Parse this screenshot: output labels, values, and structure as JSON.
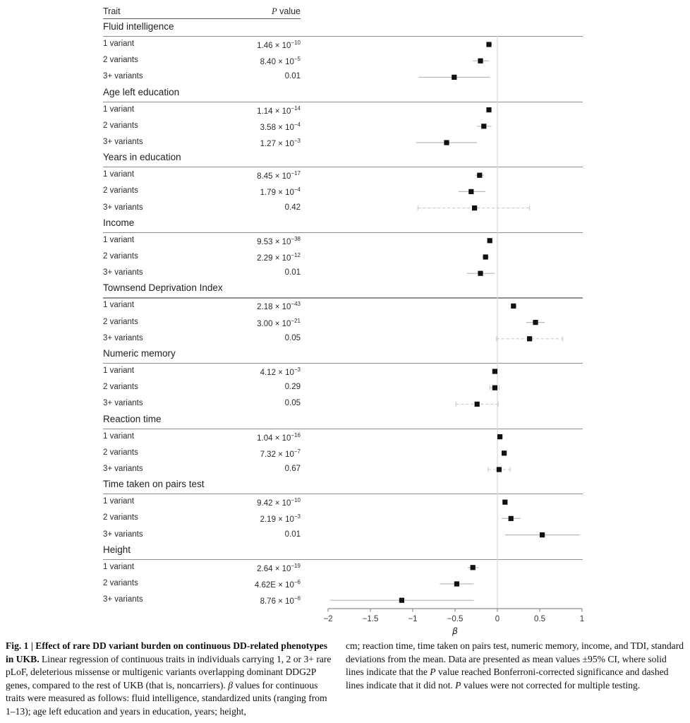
{
  "table": {
    "trait_header": "Trait",
    "p_header_italic": "P",
    "p_header_rest": " value"
  },
  "chart_data": {
    "type": "forest",
    "xlabel": "β",
    "xlim": [
      -2,
      1
    ],
    "x_ticks": [
      -2,
      -1.5,
      -1,
      -0.5,
      0,
      0.5,
      1
    ],
    "x_tick_labels": [
      "−2",
      "−1.5",
      "−1",
      "−0.5",
      "0",
      "0.5",
      "1"
    ],
    "zero_line": 0,
    "legend_note": "solid = Bonferroni-significant, dashed = not significant",
    "groups": [
      {
        "trait": "Fluid intelligence",
        "rows": [
          {
            "label": "1 variant",
            "p_base": "1.46 × 10",
            "p_exp": "−10",
            "beta": -0.1,
            "lo": -0.13,
            "hi": -0.06,
            "style": "solid"
          },
          {
            "label": "2 variants",
            "p_base": "8.40 × 10",
            "p_exp": "−5",
            "beta": -0.2,
            "lo": -0.29,
            "hi": -0.1,
            "style": "solid"
          },
          {
            "label": "3+ variants",
            "p_base": "0.01",
            "p_exp": null,
            "beta": -0.51,
            "lo": -0.93,
            "hi": -0.09,
            "style": "solid"
          }
        ]
      },
      {
        "trait": "Age left education",
        "rows": [
          {
            "label": "1 variant",
            "p_base": "1.14 × 10",
            "p_exp": "−14",
            "beta": -0.1,
            "lo": -0.13,
            "hi": -0.07,
            "style": "solid"
          },
          {
            "label": "2 variants",
            "p_base": "3.58 × 10",
            "p_exp": "−4",
            "beta": -0.16,
            "lo": -0.24,
            "hi": -0.07,
            "style": "solid"
          },
          {
            "label": "3+ variants",
            "p_base": "1.27 × 10",
            "p_exp": "−3",
            "beta": -0.6,
            "lo": -0.96,
            "hi": -0.24,
            "style": "solid"
          }
        ]
      },
      {
        "trait": "Years in education",
        "rows": [
          {
            "label": "1 variant",
            "p_base": "8.45 × 10",
            "p_exp": "−17",
            "beta": -0.21,
            "lo": -0.26,
            "hi": -0.16,
            "style": "solid"
          },
          {
            "label": "2 variants",
            "p_base": "1.79 × 10",
            "p_exp": "−4",
            "beta": -0.31,
            "lo": -0.46,
            "hi": -0.14,
            "style": "solid"
          },
          {
            "label": "3+ variants",
            "p_base": "0.42",
            "p_exp": null,
            "beta": -0.27,
            "lo": -0.94,
            "hi": 0.38,
            "style": "dashed"
          }
        ]
      },
      {
        "trait": "Income",
        "rows": [
          {
            "label": "1 variant",
            "p_base": "9.53 × 10",
            "p_exp": "−38",
            "beta": -0.09,
            "lo": -0.11,
            "hi": -0.06,
            "style": "solid"
          },
          {
            "label": "2 variants",
            "p_base": "2.29 × 10",
            "p_exp": "−12",
            "beta": -0.14,
            "lo": -0.18,
            "hi": -0.1,
            "style": "solid"
          },
          {
            "label": "3+ variants",
            "p_base": "0.01",
            "p_exp": null,
            "beta": -0.2,
            "lo": -0.36,
            "hi": -0.03,
            "style": "solid"
          }
        ]
      },
      {
        "trait": "Townsend Deprivation Index",
        "rows": [
          {
            "label": "1 variant",
            "p_base": "2.18 × 10",
            "p_exp": "−43",
            "beta": 0.19,
            "lo": 0.16,
            "hi": 0.23,
            "style": "solid"
          },
          {
            "label": "2 variants",
            "p_base": "3.00 × 10",
            "p_exp": "−21",
            "beta": 0.45,
            "lo": 0.34,
            "hi": 0.56,
            "style": "solid"
          },
          {
            "label": "3+ variants",
            "p_base": "0.05",
            "p_exp": null,
            "beta": 0.38,
            "lo": -0.01,
            "hi": 0.77,
            "style": "dashed"
          }
        ]
      },
      {
        "trait": "Numeric memory",
        "rows": [
          {
            "label": "1 variant",
            "p_base": "4.12 × 10",
            "p_exp": "−3",
            "beta": -0.03,
            "lo": -0.05,
            "hi": -0.01,
            "style": "solid"
          },
          {
            "label": "2 variants",
            "p_base": "0.29",
            "p_exp": null,
            "beta": -0.03,
            "lo": -0.09,
            "hi": 0.02,
            "style": "dashed"
          },
          {
            "label": "3+ variants",
            "p_base": "0.05",
            "p_exp": null,
            "beta": -0.24,
            "lo": -0.49,
            "hi": 0.01,
            "style": "dashed"
          }
        ]
      },
      {
        "trait": "Reaction time",
        "rows": [
          {
            "label": "1 variant",
            "p_base": "1.04 × 10",
            "p_exp": "−16",
            "beta": 0.03,
            "lo": 0.01,
            "hi": 0.05,
            "style": "solid"
          },
          {
            "label": "2 variants",
            "p_base": "7.32 × 10",
            "p_exp": "−7",
            "beta": 0.08,
            "lo": 0.05,
            "hi": 0.1,
            "style": "solid"
          },
          {
            "label": "3+ variants",
            "p_base": "0.67",
            "p_exp": null,
            "beta": 0.02,
            "lo": -0.11,
            "hi": 0.15,
            "style": "dashed"
          }
        ]
      },
      {
        "trait": "Time taken on pairs test",
        "rows": [
          {
            "label": "1 variant",
            "p_base": "9.42 × 10",
            "p_exp": "−10",
            "beta": 0.09,
            "lo": 0.06,
            "hi": 0.12,
            "style": "solid"
          },
          {
            "label": "2 variants",
            "p_base": "2.19 × 10",
            "p_exp": "−3",
            "beta": 0.16,
            "lo": 0.05,
            "hi": 0.27,
            "style": "solid"
          },
          {
            "label": "3+ variants",
            "p_base": "0.01",
            "p_exp": null,
            "beta": 0.53,
            "lo": 0.09,
            "hi": 0.97,
            "style": "solid"
          }
        ]
      },
      {
        "trait": "Height",
        "rows": [
          {
            "label": "1 variant",
            "p_base": "2.64 × 10",
            "p_exp": "−19",
            "beta": -0.29,
            "lo": -0.35,
            "hi": -0.22,
            "style": "solid"
          },
          {
            "label": "2 variants",
            "p_base": "4.62E × 10",
            "p_exp": "−6",
            "beta": -0.48,
            "lo": -0.68,
            "hi": -0.28,
            "style": "solid"
          },
          {
            "label": "3+ variants",
            "p_base": "8.76 × 10",
            "p_exp": "−6",
            "beta": -1.13,
            "lo": -1.98,
            "hi": -0.28,
            "style": "solid"
          }
        ]
      }
    ],
    "colors": {
      "point": "#111111",
      "ci_solid": "#b9b9b9",
      "ci_dashed": "#c9c9c9",
      "zero_line": "#d9d9d9",
      "axis": "#8c8c8c",
      "section_line": "#8f8f8f"
    }
  },
  "caption": {
    "left": [
      {
        "t": "Fig. 1 | Effect of rare DD variant burden on continuous DD-related phenotypes in UKB. ",
        "b": true,
        "i": false
      },
      {
        "t": "Linear regression of continuous traits in individuals carrying 1, 2 or 3+ rare pLoF, deleterious missense or multigenic variants overlapping dominant DDG2P genes, compared to the rest of UKB (that is, noncarriers). ",
        "b": false,
        "i": false
      },
      {
        "t": "β",
        "b": false,
        "i": true
      },
      {
        "t": " values for continuous traits were measured as follows: fluid intelligence, standardized units (ranging from 1–13); age left education and years in education, years; height,",
        "b": false,
        "i": false
      }
    ],
    "right": [
      {
        "t": "cm; reaction time, time taken on pairs test, numeric memory, income, and TDI, standard deviations from the mean. Data are presented as mean values ±95% CI, where solid lines indicate that the ",
        "b": false,
        "i": false
      },
      {
        "t": "P",
        "b": false,
        "i": true
      },
      {
        "t": " value reached Bonferroni-corrected significance and dashed lines indicate that it did not. ",
        "b": false,
        "i": false
      },
      {
        "t": "P",
        "b": false,
        "i": true
      },
      {
        "t": " values were not corrected for multiple testing.",
        "b": false,
        "i": false
      }
    ]
  }
}
